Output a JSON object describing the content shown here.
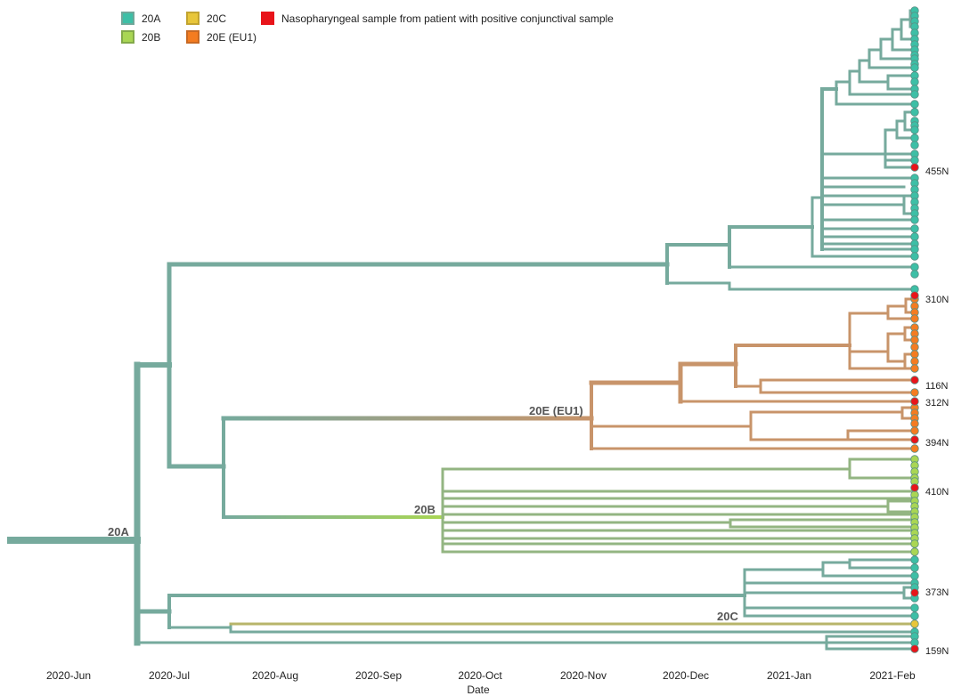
{
  "legend": [
    {
      "label": "20A",
      "color": "#3dbfa6",
      "border": "#6fa79a"
    },
    {
      "label": "20B",
      "color": "#a9d654",
      "border": "#83a94a"
    },
    {
      "label": "20C",
      "color": "#e8c63a",
      "border": "#c2a431"
    },
    {
      "label": "20E (EU1)",
      "color": "#f47c20",
      "border": "#c86a24"
    },
    {
      "label": "Nasopharyngeal sample from patient with positive conjunctival sample",
      "color": "#e8141a",
      "border": "#e8141a"
    }
  ],
  "colors": {
    "branch_20A": "#76aa9d",
    "branch_20E": "#c8946a",
    "branch_20C": "#b8b56a",
    "tip_20A": "#3dbfa6",
    "tip_20B": "#a9d654",
    "tip_20C": "#e8c63a",
    "tip_20E": "#f47c20",
    "tip_positive": "#e8141a"
  },
  "clade_labels": {
    "c20A": "20A",
    "c20B": "20B",
    "c20C": "20C",
    "c20E": "20E (EU1)"
  },
  "sample_labels": [
    "455N",
    "310N",
    "116N",
    "312N",
    "394N",
    "410N",
    "373N",
    "159N"
  ],
  "axis": {
    "ticks": [
      "2020-Jun",
      "2020-Jul",
      "2020-Aug",
      "2020-Sep",
      "2020-Oct",
      "2020-Nov",
      "2020-Dec",
      "2021-Jan",
      "2021-Feb"
    ],
    "title": "Date"
  }
}
